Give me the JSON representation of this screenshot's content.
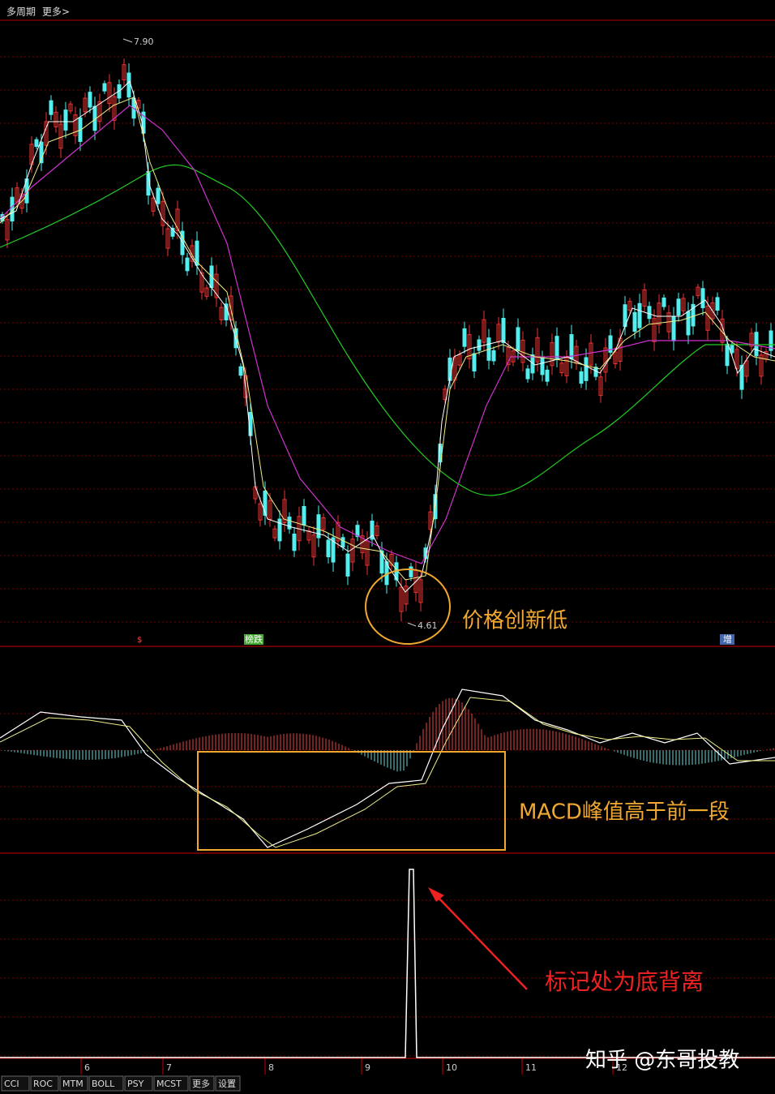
{
  "top_bar": {
    "items": [
      "多周期",
      "更多>"
    ]
  },
  "price_panel": {
    "high_label": "7.90",
    "low_label": "4.61",
    "annotation": "价格创新低",
    "markers": [
      "$",
      "榜跌",
      "增"
    ]
  },
  "macd_panel": {
    "annotation": "MACD峰值高于前一段"
  },
  "signal_panel": {
    "annotation": "标记处为底背离"
  },
  "x_axis": {
    "labels": [
      "6",
      "7",
      "8",
      "9",
      "10",
      "11",
      "12"
    ]
  },
  "tabs": [
    "CCI",
    "ROC",
    "MTM",
    "BOLL",
    "PSY",
    "MCST",
    "更多",
    "设置"
  ],
  "watermark": "知乎 @东哥投教"
}
